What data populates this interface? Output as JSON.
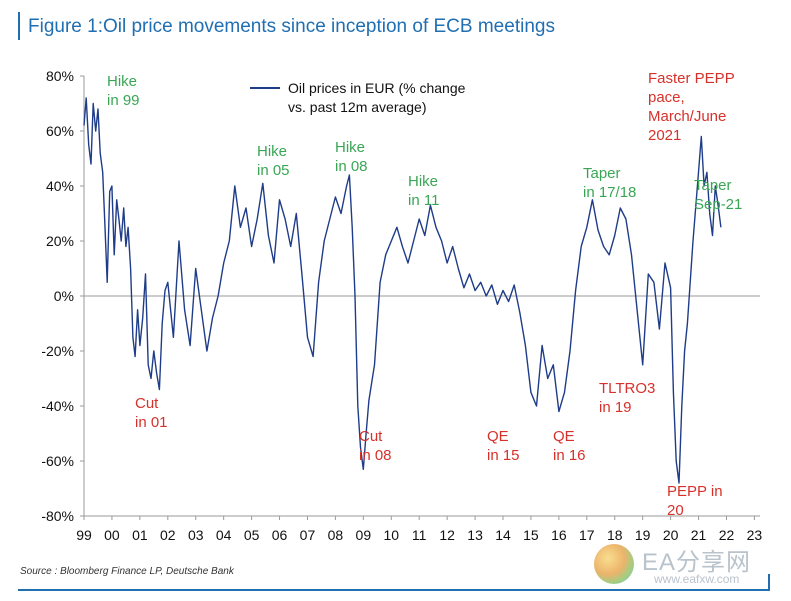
{
  "figure": {
    "title": "Figure 1:Oil price movements since inception of ECB meetings",
    "source": "Source : Bloomberg Finance LP, Deutsche Bank"
  },
  "watermark": {
    "title": "EA分享网",
    "url": "www.eafxw.com"
  },
  "chart_data": {
    "type": "line",
    "title": "",
    "xlabel": "",
    "ylabel": "",
    "xlim": [
      1999,
      2023.2
    ],
    "ylim": [
      -80,
      80
    ],
    "y_ticks": [
      80,
      60,
      40,
      20,
      0,
      -20,
      -40,
      -60,
      -80
    ],
    "y_tick_labels": [
      "80%",
      "60%",
      "40%",
      "20%",
      "0%",
      "-20%",
      "-40%",
      "-60%",
      "-80%"
    ],
    "x_ticks": [
      1999,
      2000,
      2001,
      2002,
      2003,
      2004,
      2005,
      2006,
      2007,
      2008,
      2009,
      2010,
      2011,
      2012,
      2013,
      2014,
      2015,
      2016,
      2017,
      2018,
      2019,
      2020,
      2021,
      2022,
      2023
    ],
    "x_tick_labels": [
      "99",
      "00",
      "01",
      "02",
      "03",
      "04",
      "05",
      "06",
      "07",
      "08",
      "09",
      "10",
      "11",
      "12",
      "13",
      "14",
      "15",
      "16",
      "17",
      "18",
      "19",
      "20",
      "21",
      "22",
      "23"
    ],
    "grid": false,
    "legend": {
      "placement": "top-center",
      "label_line1": "Oil prices in EUR (% change",
      "label_line2": "vs. past 12m average)"
    },
    "series": [
      {
        "name": "Oil prices in EUR (% change vs. past 12m average)",
        "color": "#1f3c88",
        "x": [
          1999.0,
          1999.08,
          1999.17,
          1999.25,
          1999.33,
          1999.42,
          1999.5,
          1999.58,
          1999.67,
          1999.75,
          1999.83,
          1999.92,
          2000.0,
          2000.08,
          2000.17,
          2000.25,
          2000.33,
          2000.42,
          2000.5,
          2000.58,
          2000.67,
          2000.75,
          2000.83,
          2000.92,
          2001.0,
          2001.1,
          2001.2,
          2001.3,
          2001.4,
          2001.5,
          2001.6,
          2001.7,
          2001.8,
          2001.9,
          2002.0,
          2002.2,
          2002.4,
          2002.6,
          2002.8,
          2003.0,
          2003.2,
          2003.4,
          2003.6,
          2003.8,
          2004.0,
          2004.2,
          2004.4,
          2004.6,
          2004.8,
          2005.0,
          2005.2,
          2005.4,
          2005.6,
          2005.8,
          2006.0,
          2006.2,
          2006.4,
          2006.6,
          2006.8,
          2007.0,
          2007.2,
          2007.4,
          2007.6,
          2007.8,
          2008.0,
          2008.2,
          2008.4,
          2008.5,
          2008.6,
          2008.7,
          2008.8,
          2008.9,
          2009.0,
          2009.1,
          2009.2,
          2009.4,
          2009.6,
          2009.8,
          2010.0,
          2010.2,
          2010.4,
          2010.6,
          2010.8,
          2011.0,
          2011.2,
          2011.4,
          2011.6,
          2011.8,
          2012.0,
          2012.2,
          2012.4,
          2012.6,
          2012.8,
          2013.0,
          2013.2,
          2013.4,
          2013.6,
          2013.8,
          2014.0,
          2014.2,
          2014.4,
          2014.6,
          2014.8,
          2015.0,
          2015.2,
          2015.4,
          2015.6,
          2015.8,
          2016.0,
          2016.2,
          2016.4,
          2016.6,
          2016.8,
          2017.0,
          2017.2,
          2017.4,
          2017.6,
          2017.8,
          2018.0,
          2018.2,
          2018.4,
          2018.6,
          2018.8,
          2019.0,
          2019.2,
          2019.4,
          2019.6,
          2019.8,
          2020.0,
          2020.1,
          2020.2,
          2020.3,
          2020.4,
          2020.5,
          2020.6,
          2020.8,
          2021.0,
          2021.1,
          2021.2,
          2021.3,
          2021.4,
          2021.5,
          2021.6,
          2021.7,
          2021.8
        ],
        "values": [
          62,
          72,
          55,
          48,
          70,
          60,
          68,
          52,
          45,
          25,
          5,
          38,
          40,
          15,
          35,
          28,
          20,
          32,
          18,
          25,
          10,
          -15,
          -22,
          -5,
          -18,
          -8,
          8,
          -25,
          -30,
          -20,
          -28,
          -34,
          -10,
          2,
          5,
          -15,
          20,
          -5,
          -18,
          10,
          -5,
          -20,
          -8,
          0,
          12,
          20,
          40,
          25,
          32,
          18,
          28,
          41,
          22,
          12,
          35,
          28,
          18,
          30,
          8,
          -15,
          -22,
          5,
          20,
          28,
          36,
          30,
          40,
          44,
          25,
          0,
          -40,
          -55,
          -63,
          -50,
          -38,
          -25,
          5,
          15,
          20,
          25,
          18,
          12,
          20,
          28,
          22,
          33,
          25,
          20,
          12,
          18,
          10,
          3,
          8,
          2,
          5,
          0,
          4,
          -3,
          2,
          -2,
          4,
          -6,
          -18,
          -35,
          -40,
          -18,
          -30,
          -25,
          -42,
          -35,
          -20,
          2,
          18,
          25,
          35,
          24,
          18,
          15,
          22,
          32,
          28,
          15,
          -5,
          -25,
          8,
          5,
          -12,
          12,
          3,
          -35,
          -60,
          -68,
          -40,
          -20,
          -10,
          20,
          45,
          58,
          40,
          45,
          30,
          22,
          40,
          33,
          25
        ]
      }
    ],
    "annotations": [
      {
        "line1": "Hike",
        "line2": "in 99",
        "color": "#3aa655"
      },
      {
        "line1": "Cut",
        "line2": "in 01",
        "color": "#d6312b"
      },
      {
        "line1": "Hike",
        "line2": "in 05",
        "color": "#3aa655"
      },
      {
        "line1": "Hike",
        "line2": "in 08",
        "color": "#3aa655"
      },
      {
        "line1": "Cut",
        "line2": "in 08",
        "color": "#d6312b"
      },
      {
        "line1": "Hike",
        "line2": "in 11",
        "color": "#3aa655"
      },
      {
        "line1": "QE",
        "line2": "in 15",
        "color": "#d6312b"
      },
      {
        "line1": "QE",
        "line2": "in 16",
        "color": "#d6312b"
      },
      {
        "line1": "Taper",
        "line2": "in 17/18",
        "color": "#3aa655"
      },
      {
        "line1": "TLTRO3",
        "line2": "in 19",
        "color": "#d6312b"
      },
      {
        "line1": "PEPP    in",
        "line2": "20",
        "color": "#d6312b"
      },
      {
        "line1": "Taper",
        "line2": "Sep-21",
        "color": "#3aa655"
      },
      {
        "line1": "Faster PEPP",
        "line2": "pace,",
        "line3": "March/June",
        "line4": "2021",
        "color": "#d6312b"
      }
    ]
  }
}
